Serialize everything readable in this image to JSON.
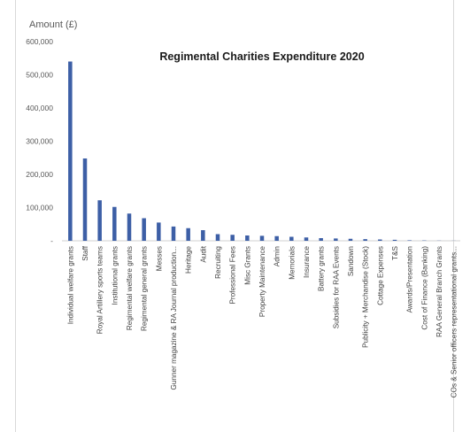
{
  "chart_data": {
    "type": "bar",
    "title": "Regimental Charities Expenditure 2020",
    "ylabel": "Amount (£)",
    "xlabel": "",
    "ylim": [
      0,
      600000
    ],
    "yticks": [
      0,
      100000,
      200000,
      300000,
      400000,
      500000,
      600000
    ],
    "ytick_labels": [
      "-",
      "100,000",
      "200,000",
      "300,000",
      "400,000",
      "500,000",
      "600,000"
    ],
    "grid": false,
    "legend": "none",
    "bar_color": "#3d5fa6",
    "categories": [
      "Individual welfare grants",
      "Staff",
      "Royal Artillery sports teams",
      "Institutional grants",
      "Regimental welfare grants",
      "Regimental general grants",
      "Messes",
      "Gunner magazine & RA Journal production...",
      "Heritage",
      "Audit",
      "Recruiting",
      "Professional Fees",
      "Misc Grants",
      "Property Maintenance",
      "Admin",
      "Memorials",
      "Insurance",
      "Battery grants",
      "Subsidies for RAA Events",
      "Sandown",
      "Publicity + Merchandise (Stock)",
      "Cottage Expenses",
      "T&S",
      "Awards/Presentation",
      "Cost of Finance (Banking)",
      "RAA General Branch Grants",
      "COs & Senior officers representational grants..."
    ],
    "values": [
      540000,
      248000,
      122000,
      102000,
      82000,
      68000,
      55000,
      43000,
      38000,
      32000,
      20000,
      18000,
      16000,
      15000,
      14000,
      12000,
      10000,
      8000,
      7000,
      6000,
      5000,
      4000,
      3000,
      1500,
      1000,
      500,
      300
    ]
  }
}
